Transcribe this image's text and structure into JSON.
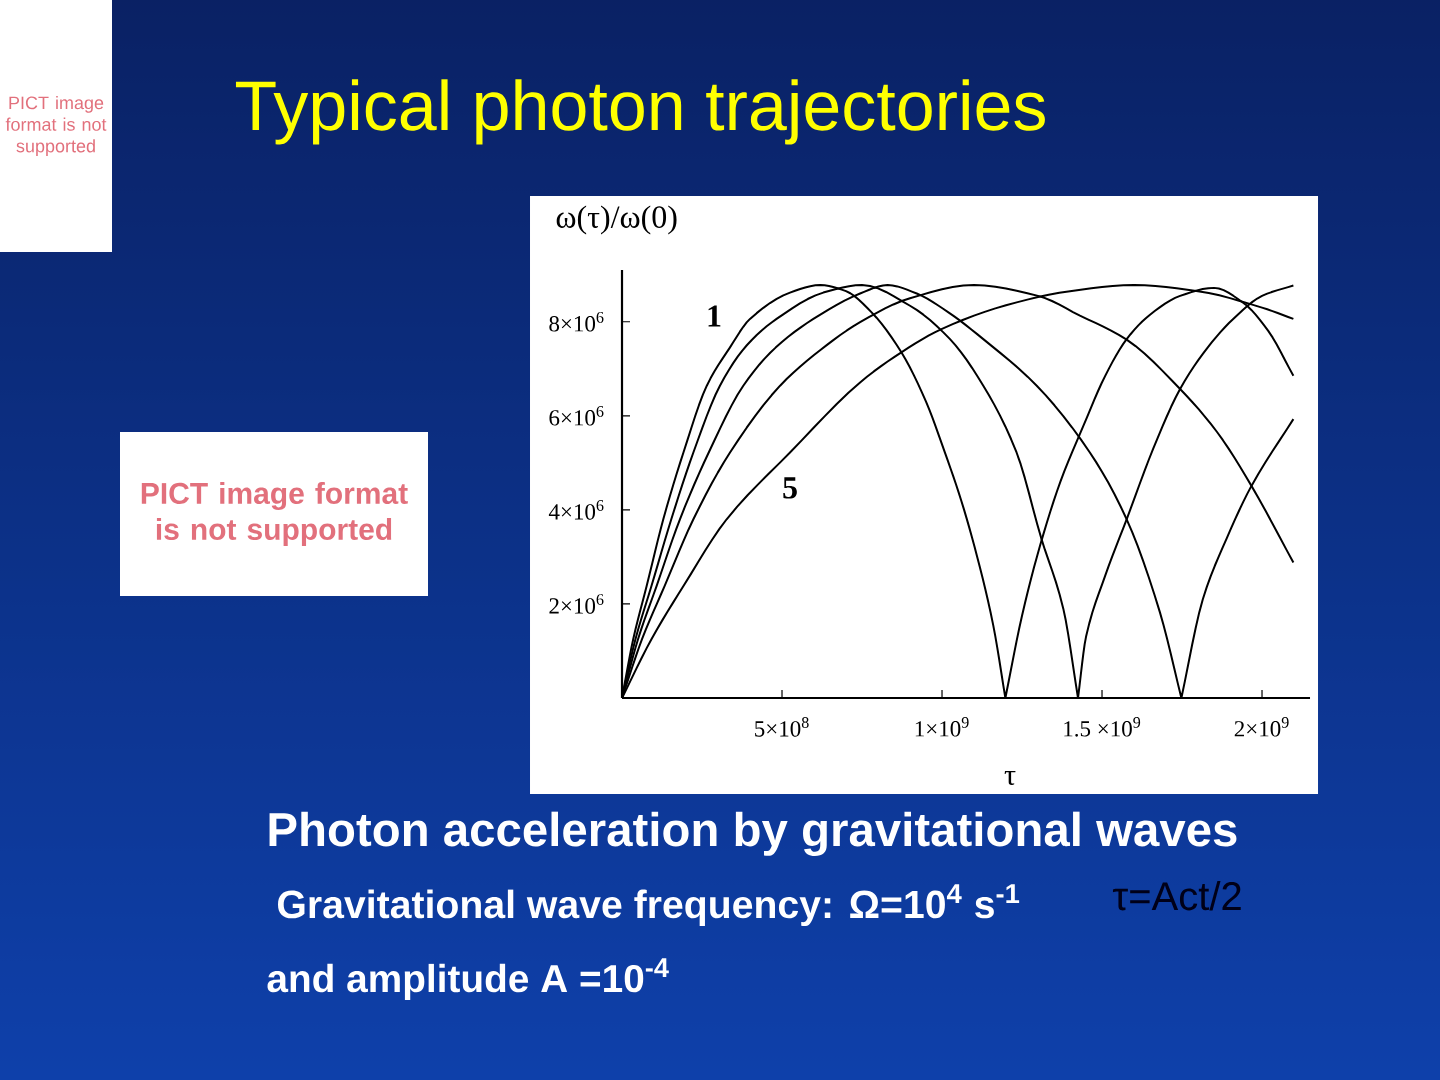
{
  "chart_data": {
    "type": "line",
    "title": "Typical photon trajectories",
    "xlabel": "τ",
    "ylabel": "ω(τ)/ω(0)",
    "xlim": [
      0,
      2150000000.0
    ],
    "ylim": [
      0,
      9100000.0
    ],
    "xticks": [
      {
        "value": 500000000.0,
        "label": "5×10$^{8}$"
      },
      {
        "value": 1000000000.0,
        "label": "1×10$^{9}$"
      },
      {
        "value": 1500000000.0,
        "label": "1.5 ×10$^{9}$"
      },
      {
        "value": 2000000000.0,
        "label": "2×10$^{9}$"
      }
    ],
    "yticks": [
      {
        "value": 2000000.0,
        "label": "2×10$^{6}$"
      },
      {
        "value": 4000000.0,
        "label": "4×10$^{6}$"
      },
      {
        "value": 6000000.0,
        "label": "6×10$^{6}$"
      },
      {
        "value": 8000000.0,
        "label": "8×10$^{6}$"
      }
    ],
    "series": [
      {
        "name": "1",
        "color": "#000000",
        "x": [
          0,
          35000000.0,
          77000000.0,
          129000000.0,
          192000000.0,
          265000000.0,
          337000000.0,
          400000000.0,
          525000000.0,
          620000000.0,
          700000000.0,
          780000000.0,
          873000000.0,
          950000000.0,
          1010000000.0,
          1060000000.0,
          1110000000.0,
          1160000000.0,
          1198000000.0,
          1250000000.0,
          1306000000.0,
          1370000000.0,
          1442000000.0,
          1510000000.0,
          1577000000.0,
          1650000000.0,
          1744000000.0,
          1850000000.0,
          1940000000.0,
          2020000000.0,
          2098000000.0
        ],
        "values": [
          0,
          1250000.0,
          2380000.0,
          3800000.0,
          5220000.0,
          6640000.0,
          7450000.0,
          8060000.0,
          8620000.0,
          8780000.0,
          8650000.0,
          8200000.0,
          7350000.0,
          6300000.0,
          5200000.0,
          4200000.0,
          3000000.0,
          1550000.0,
          0,
          1750000.0,
          3230000.0,
          4600000.0,
          5790000.0,
          6850000.0,
          7630000.0,
          8150000.0,
          8550000.0,
          8720000.0,
          8410000.0,
          7800000.0,
          6850000.0
        ]
      },
      {
        "color": "#000000",
        "x": [
          0,
          42000000.0,
          92000000.0,
          154000000.0,
          223000000.0,
          306000000.0,
          390000000.0,
          483000000.0,
          629000000.0,
          750000000.0,
          900000000.0,
          1025000000.0,
          1129000000.0,
          1233000000.0,
          1310000000.0,
          1379000000.0,
          1425000000.0,
          1450000000.0,
          1510000000.0,
          1577000000.0,
          1660000000.0,
          1744000000.0,
          1830000000.0,
          1910000000.0,
          2000000000.0,
          2098000000.0
        ],
        "values": [
          0,
          1250000.0,
          2380000.0,
          3800000.0,
          5220000.0,
          6640000.0,
          7500000.0,
          8060000.0,
          8620000.0,
          8780000.0,
          8340000.0,
          7630000.0,
          6640000.0,
          5220000.0,
          3400000.0,
          1900000.0,
          0,
          1300000.0,
          2600000.0,
          3800000.0,
          5300000.0,
          6570000.0,
          7450000.0,
          8060000.0,
          8550000.0,
          8770000.0
        ]
      },
      {
        "color": "#000000",
        "x": [
          0,
          50000000.0,
          108000000.0,
          181000000.0,
          271000000.0,
          379000000.0,
          480000000.0,
          598000000.0,
          744000000.0,
          830000000.0,
          921000000.0,
          1020000000.0,
          1129000000.0,
          1296000000.0,
          1462000000.0,
          1577000000.0,
          1681000000.0,
          1748000000.0,
          1815000000.0,
          1890000000.0,
          1967000000.0,
          2098000000.0
        ],
        "values": [
          0,
          1250000.0,
          2380000.0,
          3800000.0,
          5220000.0,
          6640000.0,
          7450000.0,
          8060000.0,
          8600000.0,
          8780000.0,
          8600000.0,
          8200000.0,
          7630000.0,
          6640000.0,
          5220000.0,
          3800000.0,
          1820000.0,
          0,
          2100000.0,
          3400000.0,
          4510000.0,
          5930000.0
        ]
      },
      {
        "color": "#000000",
        "x": [
          0,
          62500000.0,
          133000000.0,
          223000000.0,
          337500000.0,
          494000000.0,
          620000000.0,
          744000000.0,
          900000000.0,
          1100000000.0,
          1300000000.0,
          1431000000.0,
          1577000000.0,
          1744000000.0,
          1860000000.0,
          1967000000.0,
          2098000000.0
        ],
        "values": [
          0,
          1250000.0,
          2380000.0,
          3800000.0,
          5220000.0,
          6640000.0,
          7400000.0,
          7990000.0,
          8500000.0,
          8780000.0,
          8550000.0,
          8130000.0,
          7620000.0,
          6570000.0,
          5650000.0,
          4510000.0,
          2880000.0
        ]
      },
      {
        "name": "5",
        "color": "#000000",
        "x": [
          0,
          92000000.0,
          192000000.0,
          327000000.0,
          525000000.0,
          744000000.0,
          873000000.0,
          1000000000.0,
          1200000000.0,
          1400000000.0,
          1600000000.0,
          1800000000.0,
          2000000000.0,
          2098000000.0
        ],
        "values": [
          0,
          1250000.0,
          2380000.0,
          3800000.0,
          5220000.0,
          6710000.0,
          7350000.0,
          7850000.0,
          8350000.0,
          8650000.0,
          8780000.0,
          8650000.0,
          8300000.0,
          8060000.0
        ]
      }
    ],
    "annotations": [
      "PICT image format is not supported",
      "PICT image format is not supported",
      "Photon acceleration by gravitational waves",
      "Gravitational wave frequency: Ω=10$^{4}$ s$^{-1}$",
      "τ=Act/2",
      "and amplitude A =10$^{-4}$"
    ]
  }
}
